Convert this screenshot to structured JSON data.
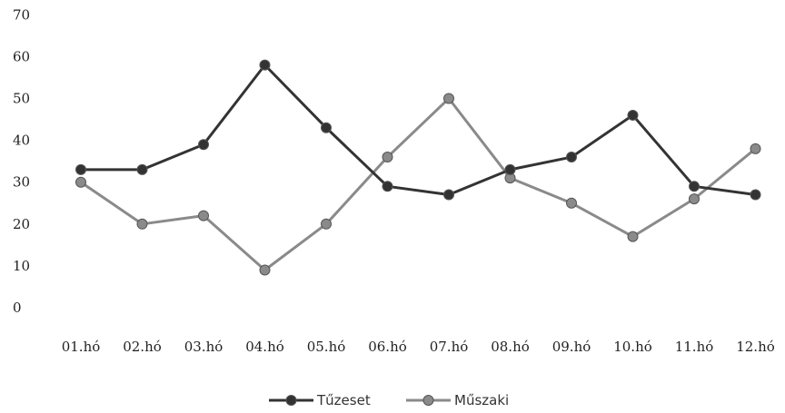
{
  "chart_data": {
    "type": "line",
    "title": "",
    "xlabel": "",
    "ylabel": "",
    "categories": [
      "01.hó",
      "02.hó",
      "03.hó",
      "04.hó",
      "05.hó",
      "06.hó",
      "07.hó",
      "08.hó",
      "09.hó",
      "10.hó",
      "11.hó",
      "12.hó"
    ],
    "ylim": [
      0,
      70
    ],
    "yticks": [
      0,
      10,
      20,
      30,
      40,
      50,
      60,
      70
    ],
    "grid": false,
    "legend_position": "bottom",
    "series": [
      {
        "name": "Tűzeset",
        "color": "#333333",
        "values": [
          33,
          33,
          39,
          58,
          43,
          29,
          27,
          33,
          36,
          46,
          29,
          27
        ]
      },
      {
        "name": "Műszaki",
        "color": "#8a8a8a",
        "values": [
          30,
          20,
          22,
          9,
          20,
          36,
          50,
          31,
          25,
          17,
          26,
          38
        ]
      }
    ]
  }
}
